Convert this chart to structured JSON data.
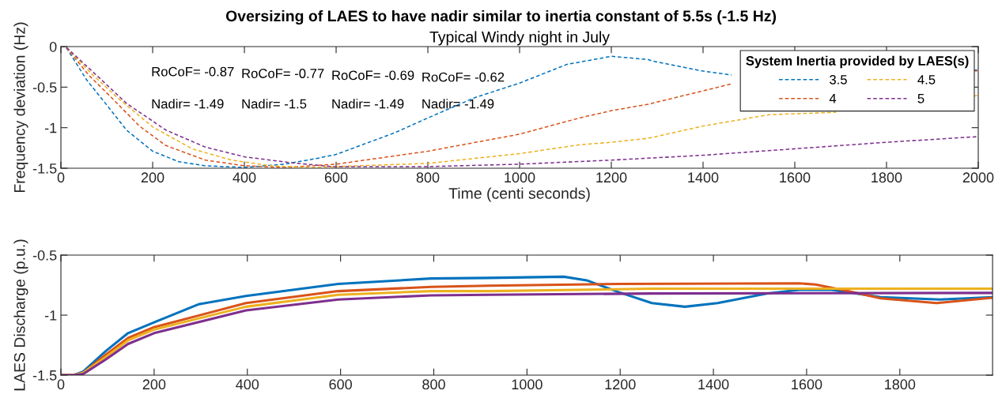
{
  "chart_data": [
    {
      "type": "line",
      "title": "Oversizing of LAES to have nadir similar to inertia constant of 5.5s (-1.5 Hz)",
      "subtitle": "Typical Windy night in July",
      "xlabel": "Time (centi seconds)",
      "ylabel": "Frequency deviation (Hz)",
      "legend_title": "System Inertia provided by LAES(s)",
      "legend": "top right",
      "line_style": "dashed",
      "marker": "none",
      "grid": false,
      "xlim": [
        0,
        2000
      ],
      "xticks": [
        0,
        200,
        400,
        600,
        800,
        1000,
        1200,
        1400,
        1600,
        1800,
        2000
      ],
      "ylim": [
        -1.5,
        0
      ],
      "yticks": [
        -1.5,
        -1,
        -0.5,
        0
      ],
      "annotations": [
        "RoCoF= -0.87",
        "Nadir= -1.49",
        "RoCoF= -0.77",
        "Nadir= -1.5",
        "RoCoF= -0.69",
        "Nadir= -1.49",
        "RoCoF= -0.62",
        "Nadir= -1.49"
      ],
      "series": [
        {
          "name": "3.5",
          "color": "#0072bd",
          "x": [
            0,
            10,
            16,
            56,
            97,
            143,
            200,
            257,
            315,
            400,
            487,
            557,
            600,
            729,
            800,
            902,
            1000,
            1103,
            1200,
            1281,
            1291,
            1398,
            1462,
            1475,
            1990,
            2000
          ],
          "values": [
            0,
            0,
            -0.05,
            -0.41,
            -0.7,
            -1.03,
            -1.29,
            -1.42,
            -1.47,
            -1.49,
            -1.45,
            -1.38,
            -1.33,
            -1.06,
            -0.88,
            -0.63,
            -0.45,
            -0.22,
            -0.12,
            -0.16,
            -0.18,
            -0.3,
            -0.35,
            null,
            -0.29,
            -0.29
          ]
        },
        {
          "name": "4",
          "color": "#d95319",
          "x": [
            0,
            10,
            62,
            114,
            171,
            229,
            315,
            400,
            487,
            600,
            800,
            1000,
            1131,
            1200,
            1281,
            1462,
            1475,
            1990,
            2000
          ],
          "values": [
            0,
            0,
            -0.36,
            -0.65,
            -0.98,
            -1.22,
            -1.4,
            -1.47,
            -1.49,
            -1.45,
            -1.29,
            -1.08,
            -0.88,
            -0.79,
            -0.71,
            -0.46,
            null,
            -0.3,
            -0.3
          ]
        },
        {
          "name": "4.5",
          "color": "#edb120",
          "x": [
            0,
            10,
            68,
            125,
            200,
            286,
            372,
            459,
            545,
            800,
            1000,
            1131,
            1200,
            1281,
            1400,
            1544,
            1690,
            1711,
            1990,
            2000
          ],
          "values": [
            0,
            0,
            -0.34,
            -0.64,
            -0.99,
            -1.26,
            -1.4,
            -1.47,
            -1.49,
            -1.44,
            -1.32,
            -1.21,
            -1.18,
            -1.13,
            -0.98,
            -0.84,
            -0.81,
            null,
            -0.61,
            -0.6
          ]
        },
        {
          "name": "5",
          "color": "#7e2f8e",
          "x": [
            0,
            10,
            79,
            143,
            229,
            315,
            401,
            499,
            591,
            800,
            1000,
            1200,
            1400,
            1600,
            1800,
            2000
          ],
          "values": [
            0,
            0,
            -0.36,
            -0.7,
            -1.03,
            -1.24,
            -1.36,
            -1.43,
            -1.48,
            -1.48,
            -1.45,
            -1.4,
            -1.34,
            -1.26,
            -1.18,
            -1.11
          ]
        }
      ]
    },
    {
      "type": "line",
      "ylabel": "LAES Discharge (p.u.)",
      "line_style": "solid",
      "marker": "none",
      "grid": false,
      "xlim": [
        0,
        1999
      ],
      "xticks": [
        0,
        200,
        400,
        600,
        800,
        1000,
        1200,
        1400,
        1600,
        1800
      ],
      "ylim": [
        -1.5,
        -0.5
      ],
      "yticks": [
        -1.5,
        -1,
        -0.5
      ],
      "series": [
        {
          "color": "#0072bd",
          "x": [
            0,
            27,
            48,
            96,
            144,
            200,
            295,
            397,
            595,
            794,
            918,
            1079,
            1128,
            1198,
            1268,
            1339,
            1409,
            1514,
            1584,
            1654,
            1759,
            1886,
            1999
          ],
          "values": [
            -1.5,
            -1.5,
            -1.47,
            -1.3,
            -1.15,
            -1.06,
            -0.91,
            -0.84,
            -0.74,
            -0.695,
            -0.69,
            -0.68,
            -0.71,
            -0.81,
            -0.9,
            -0.93,
            -0.9,
            -0.82,
            -0.79,
            -0.79,
            -0.85,
            -0.87,
            -0.85
          ]
        },
        {
          "color": "#d95319",
          "x": [
            0,
            27,
            48,
            96,
            144,
            200,
            397,
            595,
            794,
            918,
            1198,
            1584,
            1619,
            1689,
            1759,
            1879,
            1999
          ],
          "values": [
            -1.5,
            -1.5,
            -1.48,
            -1.33,
            -1.19,
            -1.1,
            -0.9,
            -0.8,
            -0.765,
            -0.755,
            -0.74,
            -0.735,
            -0.745,
            -0.8,
            -0.86,
            -0.9,
            -0.855
          ]
        },
        {
          "color": "#edb120",
          "x": [
            0,
            27,
            48,
            96,
            144,
            200,
            397,
            595,
            794,
            918,
            1268,
            1999
          ],
          "values": [
            -1.5,
            -1.5,
            -1.48,
            -1.35,
            -1.21,
            -1.12,
            -0.93,
            -0.83,
            -0.8,
            -0.8,
            -0.78,
            -0.78
          ]
        },
        {
          "color": "#7e2f8e",
          "x": [
            0,
            27,
            48,
            96,
            144,
            200,
            397,
            595,
            794,
            918,
            1268,
            1999
          ],
          "values": [
            -1.5,
            -1.5,
            -1.49,
            -1.37,
            -1.24,
            -1.15,
            -0.96,
            -0.87,
            -0.835,
            -0.83,
            -0.82,
            -0.815
          ]
        }
      ]
    }
  ]
}
